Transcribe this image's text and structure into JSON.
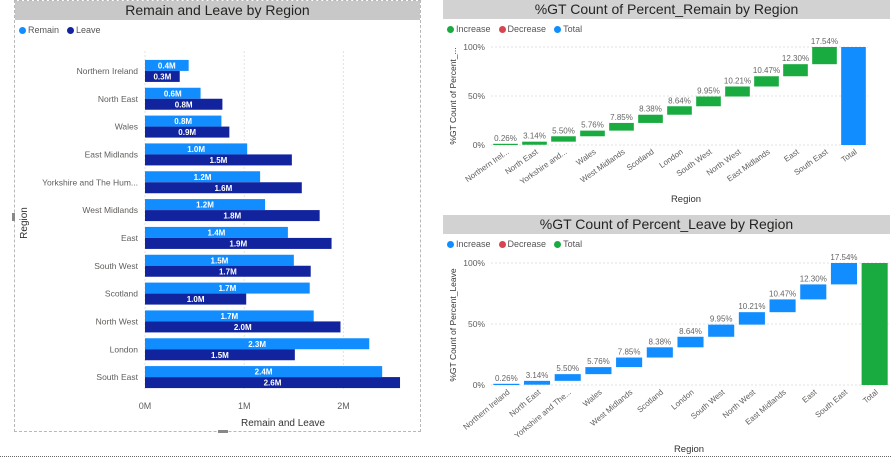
{
  "colors": {
    "remain": "#118DFF",
    "leave": "#12239E",
    "increase": "#1AAB40",
    "decrease": "#D64550",
    "total": "#118DFF",
    "total_leave": "#1AAB40",
    "grid": "#e3e3e3",
    "axis_text": "#605e5c"
  },
  "left_chart": {
    "title": "Remain and Leave by Region",
    "legend": [
      {
        "label": "Remain",
        "color": "#118DFF"
      },
      {
        "label": "Leave",
        "color": "#12239E"
      }
    ],
    "chart_data": {
      "type": "bar",
      "orientation": "horizontal",
      "categories": [
        "Northern Ireland",
        "North East",
        "Wales",
        "East Midlands",
        "Yorkshire and The Hum...",
        "West Midlands",
        "East",
        "South West",
        "Scotland",
        "North West",
        "London",
        "South East"
      ],
      "series": [
        {
          "name": "Remain",
          "values": [
            0.44,
            0.56,
            0.77,
            1.03,
            1.16,
            1.21,
            1.44,
            1.5,
            1.66,
            1.7,
            2.26,
            2.39
          ],
          "labels": [
            "0.4M",
            "0.6M",
            "0.8M",
            "1.0M",
            "1.2M",
            "1.2M",
            "1.4M",
            "1.5M",
            "1.7M",
            "1.7M",
            "2.3M",
            "2.4M"
          ]
        },
        {
          "name": "Leave",
          "values": [
            0.35,
            0.78,
            0.85,
            1.48,
            1.58,
            1.76,
            1.88,
            1.67,
            1.02,
            1.97,
            1.51,
            2.57
          ],
          "labels": [
            "0.3M",
            "0.8M",
            "0.9M",
            "1.5M",
            "1.6M",
            "1.8M",
            "1.9M",
            "1.7M",
            "1.0M",
            "2.0M",
            "1.5M",
            "2.6M"
          ]
        }
      ],
      "xlabel": "Remain and Leave",
      "ylabel": "Region",
      "xticks": [
        "0M",
        "1M",
        "2M"
      ],
      "xlim": [
        0,
        2.6
      ]
    }
  },
  "right_top": {
    "title": "%GT Count of Percent_Remain by Region",
    "legend": [
      {
        "label": "Increase",
        "color": "#1AAB40"
      },
      {
        "label": "Decrease",
        "color": "#D64550"
      },
      {
        "label": "Total",
        "color": "#118DFF"
      }
    ],
    "chart_data": {
      "type": "bar",
      "subtype": "waterfall",
      "categories": [
        "Northern Irel...",
        "North East",
        "Yorkshire and...",
        "Wales",
        "West Midlands",
        "Scotland",
        "London",
        "South West",
        "North West",
        "East Midlands",
        "East",
        "South East",
        "Total"
      ],
      "values": [
        0.26,
        3.14,
        5.5,
        5.76,
        7.85,
        8.38,
        8.64,
        9.95,
        10.21,
        10.47,
        12.3,
        17.54,
        100
      ],
      "labels": [
        "0.26%",
        "3.14%",
        "5.50%",
        "5.76%",
        "7.85%",
        "8.38%",
        "8.64%",
        "9.95%",
        "10.21%",
        "10.47%",
        "12.30%",
        "17.54%",
        ""
      ],
      "xlabel": "Region",
      "ylabel": "%GT Count of Percent_...",
      "yticks": [
        "0%",
        "50%",
        "100%"
      ],
      "ylim": [
        0,
        100
      ],
      "total_color": "#118DFF"
    }
  },
  "right_bottom": {
    "title": "%GT Count of Percent_Leave by Region",
    "legend": [
      {
        "label": "Increase",
        "color": "#118DFF"
      },
      {
        "label": "Decrease",
        "color": "#D64550"
      },
      {
        "label": "Total",
        "color": "#1AAB40"
      }
    ],
    "chart_data": {
      "type": "bar",
      "subtype": "waterfall",
      "categories": [
        "Northern Ireland",
        "North East",
        "Yorkshire and The...",
        "Wales",
        "West Midlands",
        "Scotland",
        "London",
        "South West",
        "North West",
        "East Midlands",
        "East",
        "South East",
        "Total"
      ],
      "values": [
        0.26,
        3.14,
        5.5,
        5.76,
        7.85,
        8.38,
        8.64,
        9.95,
        10.21,
        10.47,
        12.3,
        17.54,
        100
      ],
      "labels": [
        "0.26%",
        "3.14%",
        "5.50%",
        "5.76%",
        "7.85%",
        "8.38%",
        "8.64%",
        "9.95%",
        "10.21%",
        "10.47%",
        "12.30%",
        "17.54%",
        ""
      ],
      "xlabel": "Region",
      "ylabel": "%GT Count of Percent_Leave",
      "yticks": [
        "0%",
        "50%",
        "100%"
      ],
      "ylim": [
        0,
        100
      ],
      "total_color": "#1AAB40"
    }
  }
}
